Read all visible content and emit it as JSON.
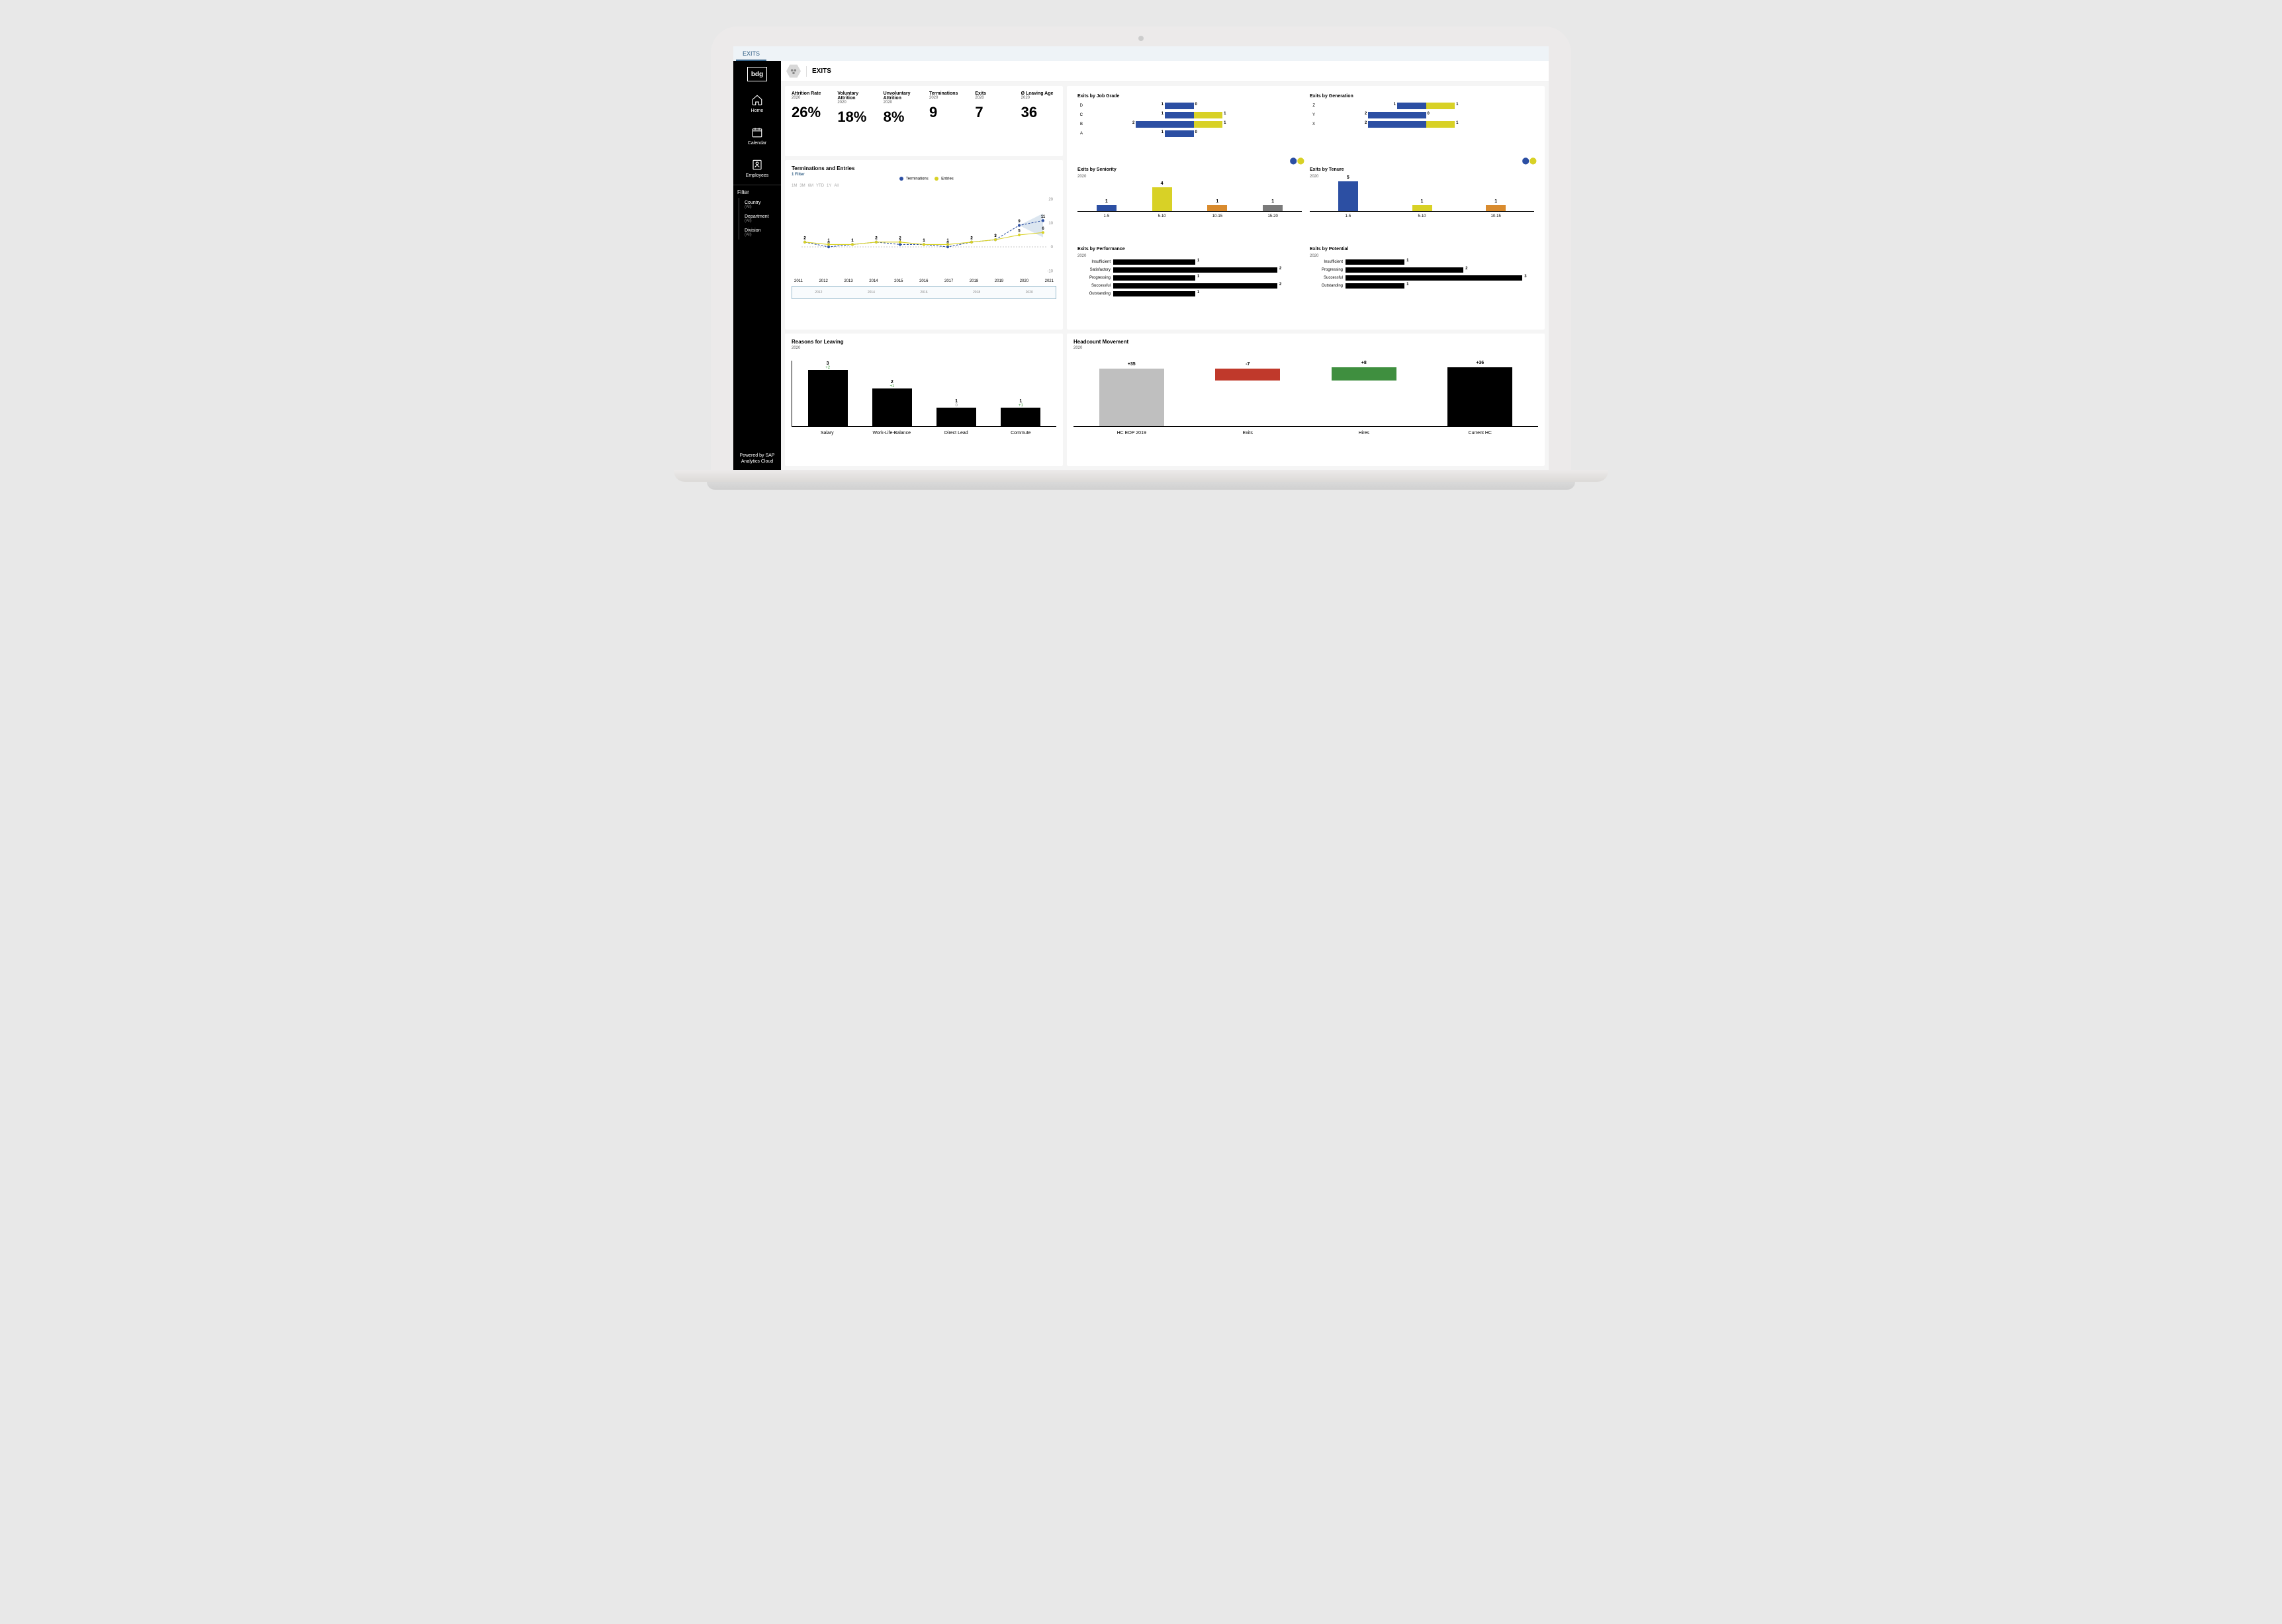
{
  "tab": {
    "label": "EXITS"
  },
  "titlebar": {
    "text": "EXITS"
  },
  "sidebar": {
    "logo": "bdg",
    "items": [
      {
        "label": "Home"
      },
      {
        "label": "Calendar"
      },
      {
        "label": "Employees"
      }
    ],
    "filter_title": "Filter",
    "filters": [
      {
        "label": "Country",
        "sub": "(All)"
      },
      {
        "label": "Department",
        "sub": "(All)"
      },
      {
        "label": "Division",
        "sub": "(All)"
      }
    ],
    "powered_line1": "Powered by SAP",
    "powered_line2": "Analytics Cloud"
  },
  "kpis": {
    "items": [
      {
        "label": "Attrition Rate",
        "year": "2020",
        "value": "26%"
      },
      {
        "label": "Voluntary Attrition",
        "year": "2020",
        "value": "18%"
      },
      {
        "label": "Unvoluntary Attrition",
        "year": "2020",
        "value": "8%"
      },
      {
        "label": "Terminations",
        "year": "2020",
        "value": "9"
      },
      {
        "label": "Exits",
        "year": "2020",
        "value": "7"
      },
      {
        "label": "Ø Leaving Age",
        "year": "2020",
        "value": "36"
      }
    ]
  },
  "terminations_entries": {
    "title": "Terminations and Entries",
    "filter_text": "1 Filter",
    "legend": {
      "a": "Terminations",
      "b": "Entries"
    },
    "series_color_a": "#2c4fa3",
    "series_color_b": "#d8d126",
    "time_ranges": [
      "1M",
      "3M",
      "6M",
      "YTD",
      "1Y",
      "All"
    ],
    "years": [
      "2011",
      "2012",
      "2013",
      "2014",
      "2015",
      "2016",
      "2017",
      "2018",
      "2019",
      "2020",
      "2021"
    ],
    "scrub_ticks": [
      "2012",
      "2014",
      "2016",
      "2018",
      "2020"
    ],
    "y_ticks": [
      "20",
      "10",
      "0",
      "-10"
    ],
    "terminations": [
      2,
      0,
      1,
      2,
      1,
      1,
      0,
      2,
      3,
      9,
      11
    ],
    "entries": [
      2,
      1,
      1,
      2,
      2,
      1,
      1,
      2,
      3,
      5,
      6
    ],
    "forecast_upper": 11,
    "forecast_lower": 6,
    "ylim": [
      -10,
      20
    ]
  },
  "job_grade": {
    "title": "Exits by Job Grade",
    "categories": [
      "D",
      "C",
      "B",
      "A"
    ],
    "left_vals": [
      1,
      1,
      2,
      1
    ],
    "right_vals": [
      0,
      1,
      1,
      0
    ],
    "left_color": "#2c4fa3",
    "right_color": "#d8d126",
    "axis_max": 3
  },
  "generation": {
    "title": "Exits by Generation",
    "categories": [
      "Z",
      "Y",
      "X"
    ],
    "left_vals": [
      1,
      2,
      2
    ],
    "right_vals": [
      1,
      0,
      1
    ],
    "left_color": "#2c4fa3",
    "right_color": "#d8d126",
    "axis_max": 3
  },
  "seniority": {
    "title": "Exits by Seniority",
    "year": "2020",
    "categories": [
      "1-5",
      "5-10",
      "10-15",
      "15-20"
    ],
    "values": [
      1,
      4,
      1,
      1
    ],
    "colors": [
      "#2c4fa3",
      "#d8d126",
      "#d98b2e",
      "#7a7a7a"
    ],
    "ymax": 5
  },
  "tenure": {
    "title": "Exits by Tenure",
    "year": "2020",
    "categories": [
      "1-5",
      "5-10",
      "10-15"
    ],
    "values": [
      5,
      1,
      1
    ],
    "colors": [
      "#2c4fa3",
      "#d8d126",
      "#d98b2e"
    ],
    "ymax": 5
  },
  "performance": {
    "title": "Exits by Performance",
    "year": "2020",
    "categories": [
      "Insufficient",
      "Satisfactory",
      "Progressing",
      "Successful",
      "Outstanding"
    ],
    "values": [
      1,
      2,
      1,
      2,
      1
    ],
    "color": "#000000",
    "xmax": 2.3
  },
  "potential": {
    "title": "Exits by Potential",
    "year": "2020",
    "categories": [
      "Insufficient",
      "Progressing",
      "Successful",
      "Outstanding"
    ],
    "values": [
      1,
      2,
      3,
      1
    ],
    "color": "#000000",
    "xmax": 3.2
  },
  "reasons": {
    "title": "Reasons for Leaving",
    "year": "2020",
    "categories": [
      "Salary",
      "Work-Life-Balance",
      "Direct Lead",
      "Commute"
    ],
    "values": [
      3,
      2,
      1,
      1
    ],
    "deltas": [
      "+2",
      "+1",
      "0",
      "+1"
    ],
    "delta_colors": [
      "#3a9a3a",
      "#3a9a3a",
      "#888888",
      "#3a9a3a"
    ],
    "color": "#000000",
    "ymax": 3
  },
  "headcount": {
    "title": "Headcount Movement",
    "year": "2020",
    "categories": [
      "HC EOP 2019",
      "Exits",
      "Hires",
      "Current HC"
    ],
    "values": [
      35,
      -7,
      8,
      36
    ],
    "labels": [
      "+35",
      "-7",
      "+8",
      "+36"
    ],
    "colors": [
      "#bfbfbf",
      "#c0392b",
      "#3f8f3f",
      "#000000"
    ],
    "ymax": 40
  }
}
